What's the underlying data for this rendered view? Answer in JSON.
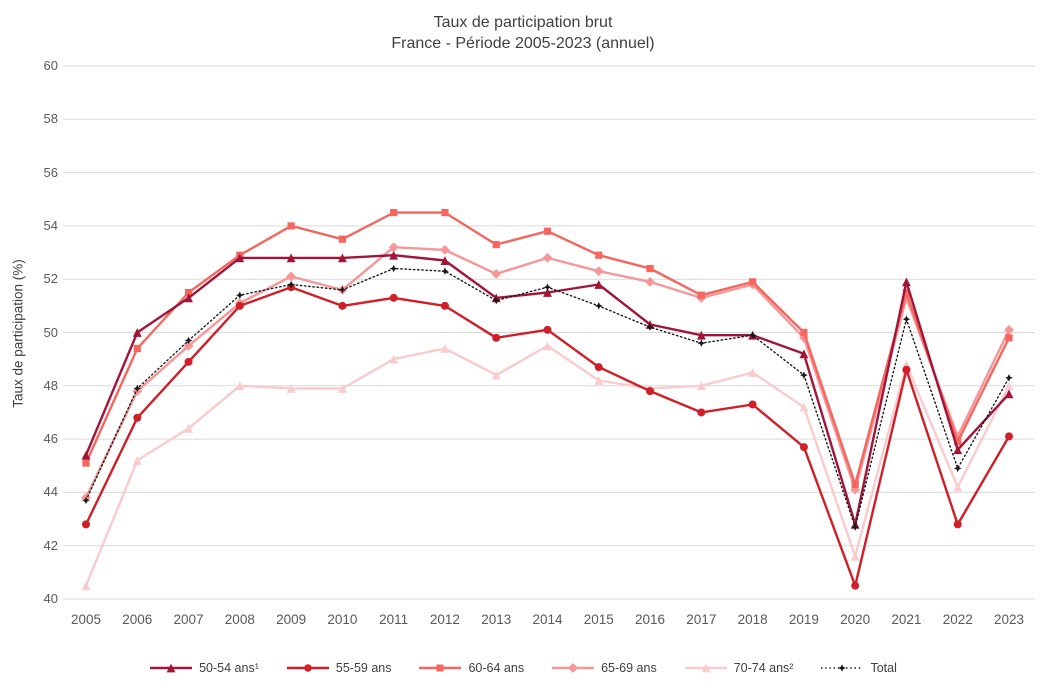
{
  "title": {
    "line1": "Taux  de participation brut",
    "line2": "France - Période 2005-2023 (annuel)"
  },
  "y_axis": {
    "title": "Taux de participation (%)",
    "ticks": [
      "40",
      "42",
      "44",
      "46",
      "48",
      "50",
      "52",
      "54",
      "56",
      "58",
      "60"
    ]
  },
  "x_axis": {
    "ticks": [
      "2005",
      "2006",
      "2007",
      "2008",
      "2009",
      "2010",
      "2011",
      "2012",
      "2013",
      "2014",
      "2015",
      "2016",
      "2017",
      "2018",
      "2019",
      "2020",
      "2021",
      "2022",
      "2023"
    ]
  },
  "colors": {
    "background": "#FFFFFF",
    "gridline": "#DADADA",
    "title_text": "#404040",
    "tick_text": "#595959",
    "legend_text": "#404040"
  },
  "chart_data": {
    "type": "line",
    "title": "Taux de participation brut — France - Période 2005-2023 (annuel)",
    "xlabel": "",
    "ylabel": "Taux de participation (%)",
    "ylim": [
      40,
      60
    ],
    "grid": "horizontal only",
    "legend_position": "bottom",
    "x": [
      2005,
      2006,
      2007,
      2008,
      2009,
      2010,
      2011,
      2012,
      2013,
      2014,
      2015,
      2016,
      2017,
      2018,
      2019,
      2020,
      2021,
      2022,
      2023
    ],
    "series": [
      {
        "name": "50-54 ans¹",
        "color": "#A11538",
        "marker": "triangle",
        "dotted": false,
        "values": [
          45.4,
          50.0,
          51.3,
          52.8,
          52.8,
          52.8,
          52.9,
          52.7,
          51.3,
          51.5,
          51.8,
          50.3,
          49.9,
          49.9,
          49.2,
          42.8,
          51.9,
          45.6,
          47.7
        ]
      },
      {
        "name": "55-59 ans",
        "color": "#D01F28",
        "marker": "circle",
        "dotted": false,
        "values": [
          42.8,
          46.8,
          48.9,
          51.0,
          51.7,
          51.0,
          51.3,
          51.0,
          49.8,
          50.1,
          48.7,
          47.8,
          47.0,
          47.3,
          45.7,
          40.5,
          48.6,
          42.8,
          46.1
        ]
      },
      {
        "name": "60-64 ans",
        "color": "#F4665E",
        "marker": "square",
        "dotted": false,
        "values": [
          45.1,
          49.4,
          51.5,
          52.9,
          54.0,
          53.5,
          54.5,
          54.5,
          53.3,
          53.8,
          52.9,
          52.4,
          51.4,
          51.9,
          50.0,
          44.3,
          51.5,
          45.9,
          49.8
        ]
      },
      {
        "name": "65-69 ans",
        "color": "#F79597",
        "marker": "diamond",
        "dotted": false,
        "values": [
          43.8,
          47.8,
          49.5,
          51.1,
          52.1,
          51.6,
          53.2,
          53.1,
          52.2,
          52.8,
          52.3,
          51.9,
          51.3,
          51.8,
          49.8,
          44.1,
          51.3,
          46.1,
          50.1
        ]
      },
      {
        "name": "70-74 ans²",
        "color": "#FACBCD",
        "marker": "triangle",
        "dotted": false,
        "values": [
          40.5,
          45.2,
          46.4,
          48.0,
          47.9,
          47.9,
          49.0,
          49.4,
          48.4,
          49.5,
          48.2,
          47.9,
          48.0,
          48.5,
          47.2,
          41.6,
          48.8,
          44.2,
          48.0
        ]
      },
      {
        "name": "Total",
        "color": "#1A1A1A",
        "marker": "star4",
        "dotted": true,
        "values": [
          43.7,
          47.9,
          49.7,
          51.4,
          51.8,
          51.6,
          52.4,
          52.3,
          51.2,
          51.7,
          51.0,
          50.2,
          49.6,
          49.9,
          48.4,
          42.7,
          50.5,
          44.9,
          48.3
        ]
      }
    ]
  }
}
